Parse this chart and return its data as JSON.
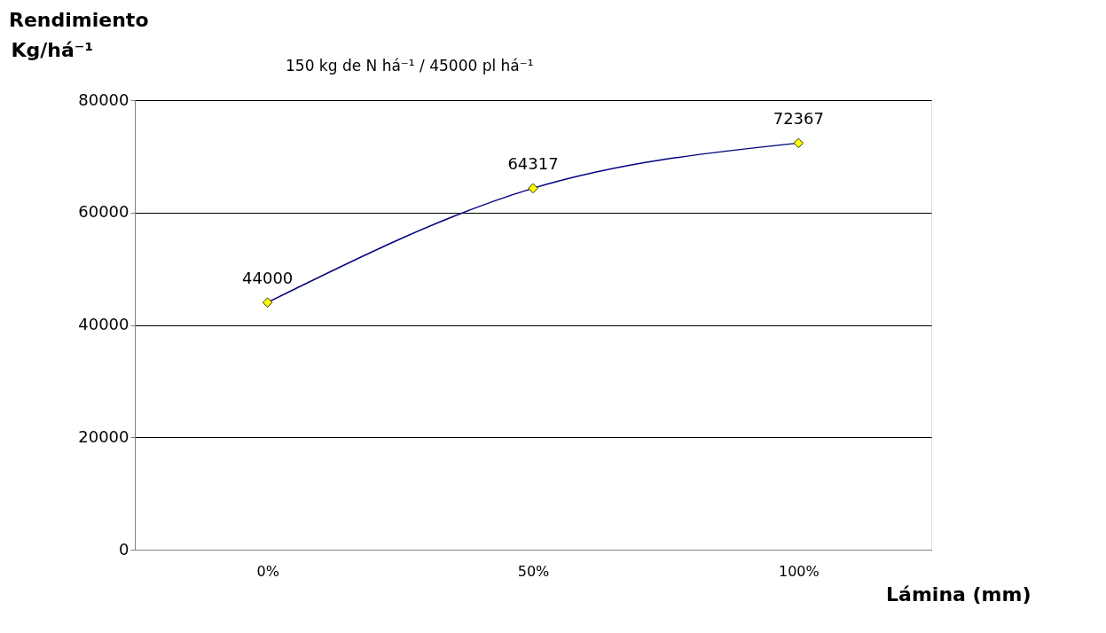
{
  "chart_data": {
    "type": "line",
    "title": "Rendimiento",
    "ylabel": "Kg/há⁻¹",
    "subtitle": "150 kg de N há⁻¹  /  45000 pl há⁻¹",
    "xlabel": "Lámina (mm)",
    "categories": [
      "0%",
      "50%",
      "100%"
    ],
    "series": [
      {
        "color": "#000080",
        "values": [
          44000,
          64317,
          72367
        ]
      }
    ],
    "marker": "diamond",
    "line_style": "solid",
    "data_labels": true,
    "ylim": [
      0,
      80000
    ],
    "yticks": [
      0,
      20000,
      40000,
      60000,
      80000
    ],
    "grid": "y",
    "legend": false
  }
}
